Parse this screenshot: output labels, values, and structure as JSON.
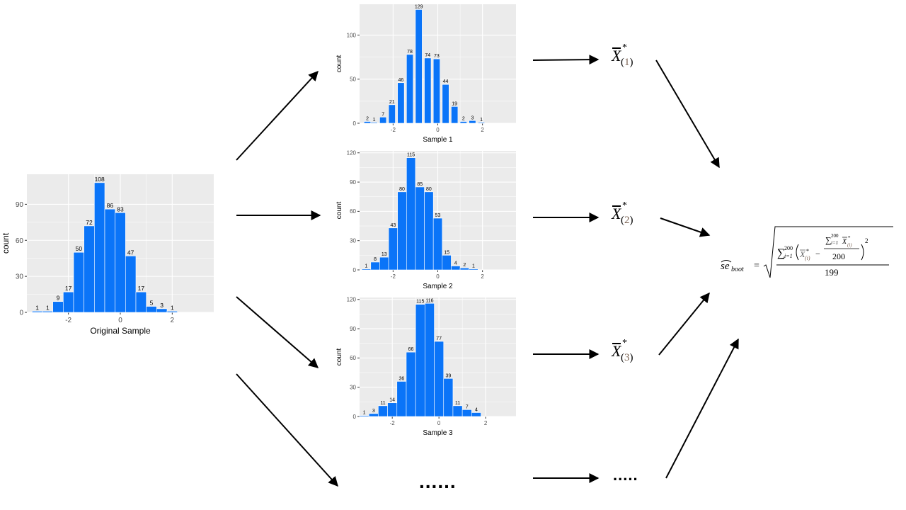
{
  "colors": {
    "bar": "#0a74f8",
    "panel": "#ebebeb",
    "grid": "#ffffff",
    "axis_text": "#4d4d4d",
    "subscript": "#7a6252"
  },
  "chart_data": [
    {
      "id": "original",
      "type": "bar",
      "xlabel": "Original Sample",
      "ylabel": "count",
      "bin_centers": [
        -3.2,
        -2.8,
        -2.4,
        -2.0,
        -1.6,
        -1.2,
        -0.8,
        -0.4,
        0.0,
        0.4,
        0.8,
        1.2,
        1.6,
        2.0,
        2.4,
        2.8,
        3.2
      ],
      "values": [
        1,
        1,
        9,
        17,
        50,
        72,
        108,
        86,
        83,
        47,
        17,
        5,
        3,
        1,
        0,
        0,
        0
      ],
      "labels": [
        "1",
        "1",
        "9",
        "17",
        "50",
        "72",
        "108",
        "86",
        "83",
        "47",
        "17",
        "5",
        "3",
        "1",
        "",
        "",
        ""
      ],
      "xticks": [
        -2,
        0,
        2
      ],
      "yticks": [
        0,
        30,
        60,
        90
      ],
      "xlim": [
        -3.6,
        3.6
      ],
      "ylim": [
        0,
        115
      ],
      "grid": true
    },
    {
      "id": "sample1",
      "type": "bar",
      "xlabel": "Sample 1",
      "ylabel": "count",
      "bin_centers": [
        -3.15,
        -2.85,
        -2.45,
        -2.05,
        -1.65,
        -1.25,
        -0.85,
        -0.45,
        -0.05,
        0.35,
        0.75,
        1.15,
        1.55,
        1.95,
        2.35,
        2.75,
        3.15
      ],
      "values": [
        2,
        1,
        7,
        21,
        46,
        78,
        129,
        74,
        73,
        44,
        19,
        2,
        3,
        1,
        0,
        0,
        0
      ],
      "labels": [
        "2",
        "1",
        "7",
        "21",
        "46",
        "78",
        "129",
        "74",
        "73",
        "44",
        "19",
        "2",
        "3",
        "1",
        "",
        "",
        ""
      ],
      "xticks": [
        -2,
        0,
        2
      ],
      "yticks": [
        0,
        50,
        100
      ],
      "xlim": [
        -3.5,
        3.5
      ],
      "ylim": [
        0,
        135
      ],
      "grid": true
    },
    {
      "id": "sample2",
      "type": "bar",
      "xlabel": "Sample 2",
      "ylabel": "count",
      "bin_centers": [
        -3.2,
        -2.8,
        -2.4,
        -2.0,
        -1.6,
        -1.2,
        -0.8,
        -0.4,
        0.0,
        0.4,
        0.8,
        1.2,
        1.6,
        2.0,
        2.4,
        2.8,
        3.2
      ],
      "values": [
        1,
        8,
        13,
        43,
        80,
        115,
        85,
        80,
        53,
        15,
        4,
        2,
        1,
        0,
        0,
        0,
        0
      ],
      "labels": [
        "1",
        "8",
        "13",
        "43",
        "80",
        "115",
        "85",
        "80",
        "53",
        "15",
        "4",
        "2",
        "1",
        "",
        "",
        "",
        ""
      ],
      "xticks": [
        -2,
        0,
        2
      ],
      "yticks": [
        0,
        30,
        60,
        90,
        120
      ],
      "xlim": [
        -3.5,
        3.5
      ],
      "ylim": [
        0,
        122
      ],
      "grid": true
    },
    {
      "id": "sample3",
      "type": "bar",
      "xlabel": "Sample 3",
      "ylabel": "count",
      "bin_centers": [
        -3.2,
        -2.8,
        -2.4,
        -2.0,
        -1.6,
        -1.2,
        -0.8,
        -0.4,
        0.0,
        0.4,
        0.8,
        1.2,
        1.6,
        2.0,
        2.4,
        2.8
      ],
      "values": [
        1,
        3,
        11,
        14,
        36,
        66,
        115,
        116,
        77,
        39,
        11,
        7,
        4,
        0,
        0,
        0
      ],
      "labels": [
        "1",
        "3",
        "11",
        "14",
        "36",
        "66",
        "115",
        "116",
        "77",
        "39",
        "11",
        "7",
        "4",
        "",
        "",
        ""
      ],
      "xticks": [
        -2,
        0,
        2
      ],
      "yticks": [
        0,
        30,
        60,
        90,
        120
      ],
      "xlim": [
        -3.4,
        3.3
      ],
      "ylim": [
        0,
        122
      ],
      "grid": true
    }
  ],
  "estimates": [
    {
      "symbol": "X",
      "star": "*",
      "index": "1"
    },
    {
      "symbol": "X",
      "star": "*",
      "index": "2"
    },
    {
      "symbol": "X",
      "star": "*",
      "index": "3"
    }
  ],
  "ellipses": {
    "samples": "......",
    "estimates": "....."
  },
  "formula": {
    "lhs_main": "se",
    "lhs_sub": "boot",
    "equals": "=",
    "sum_sym": "∑",
    "sum_lower": "i=1",
    "sum_upper": "200",
    "term_x": "X",
    "term_star": "*",
    "term_sub": "(i)",
    "minus": "−",
    "inner_den": "200",
    "exponent": "2",
    "outer_den": "199"
  }
}
